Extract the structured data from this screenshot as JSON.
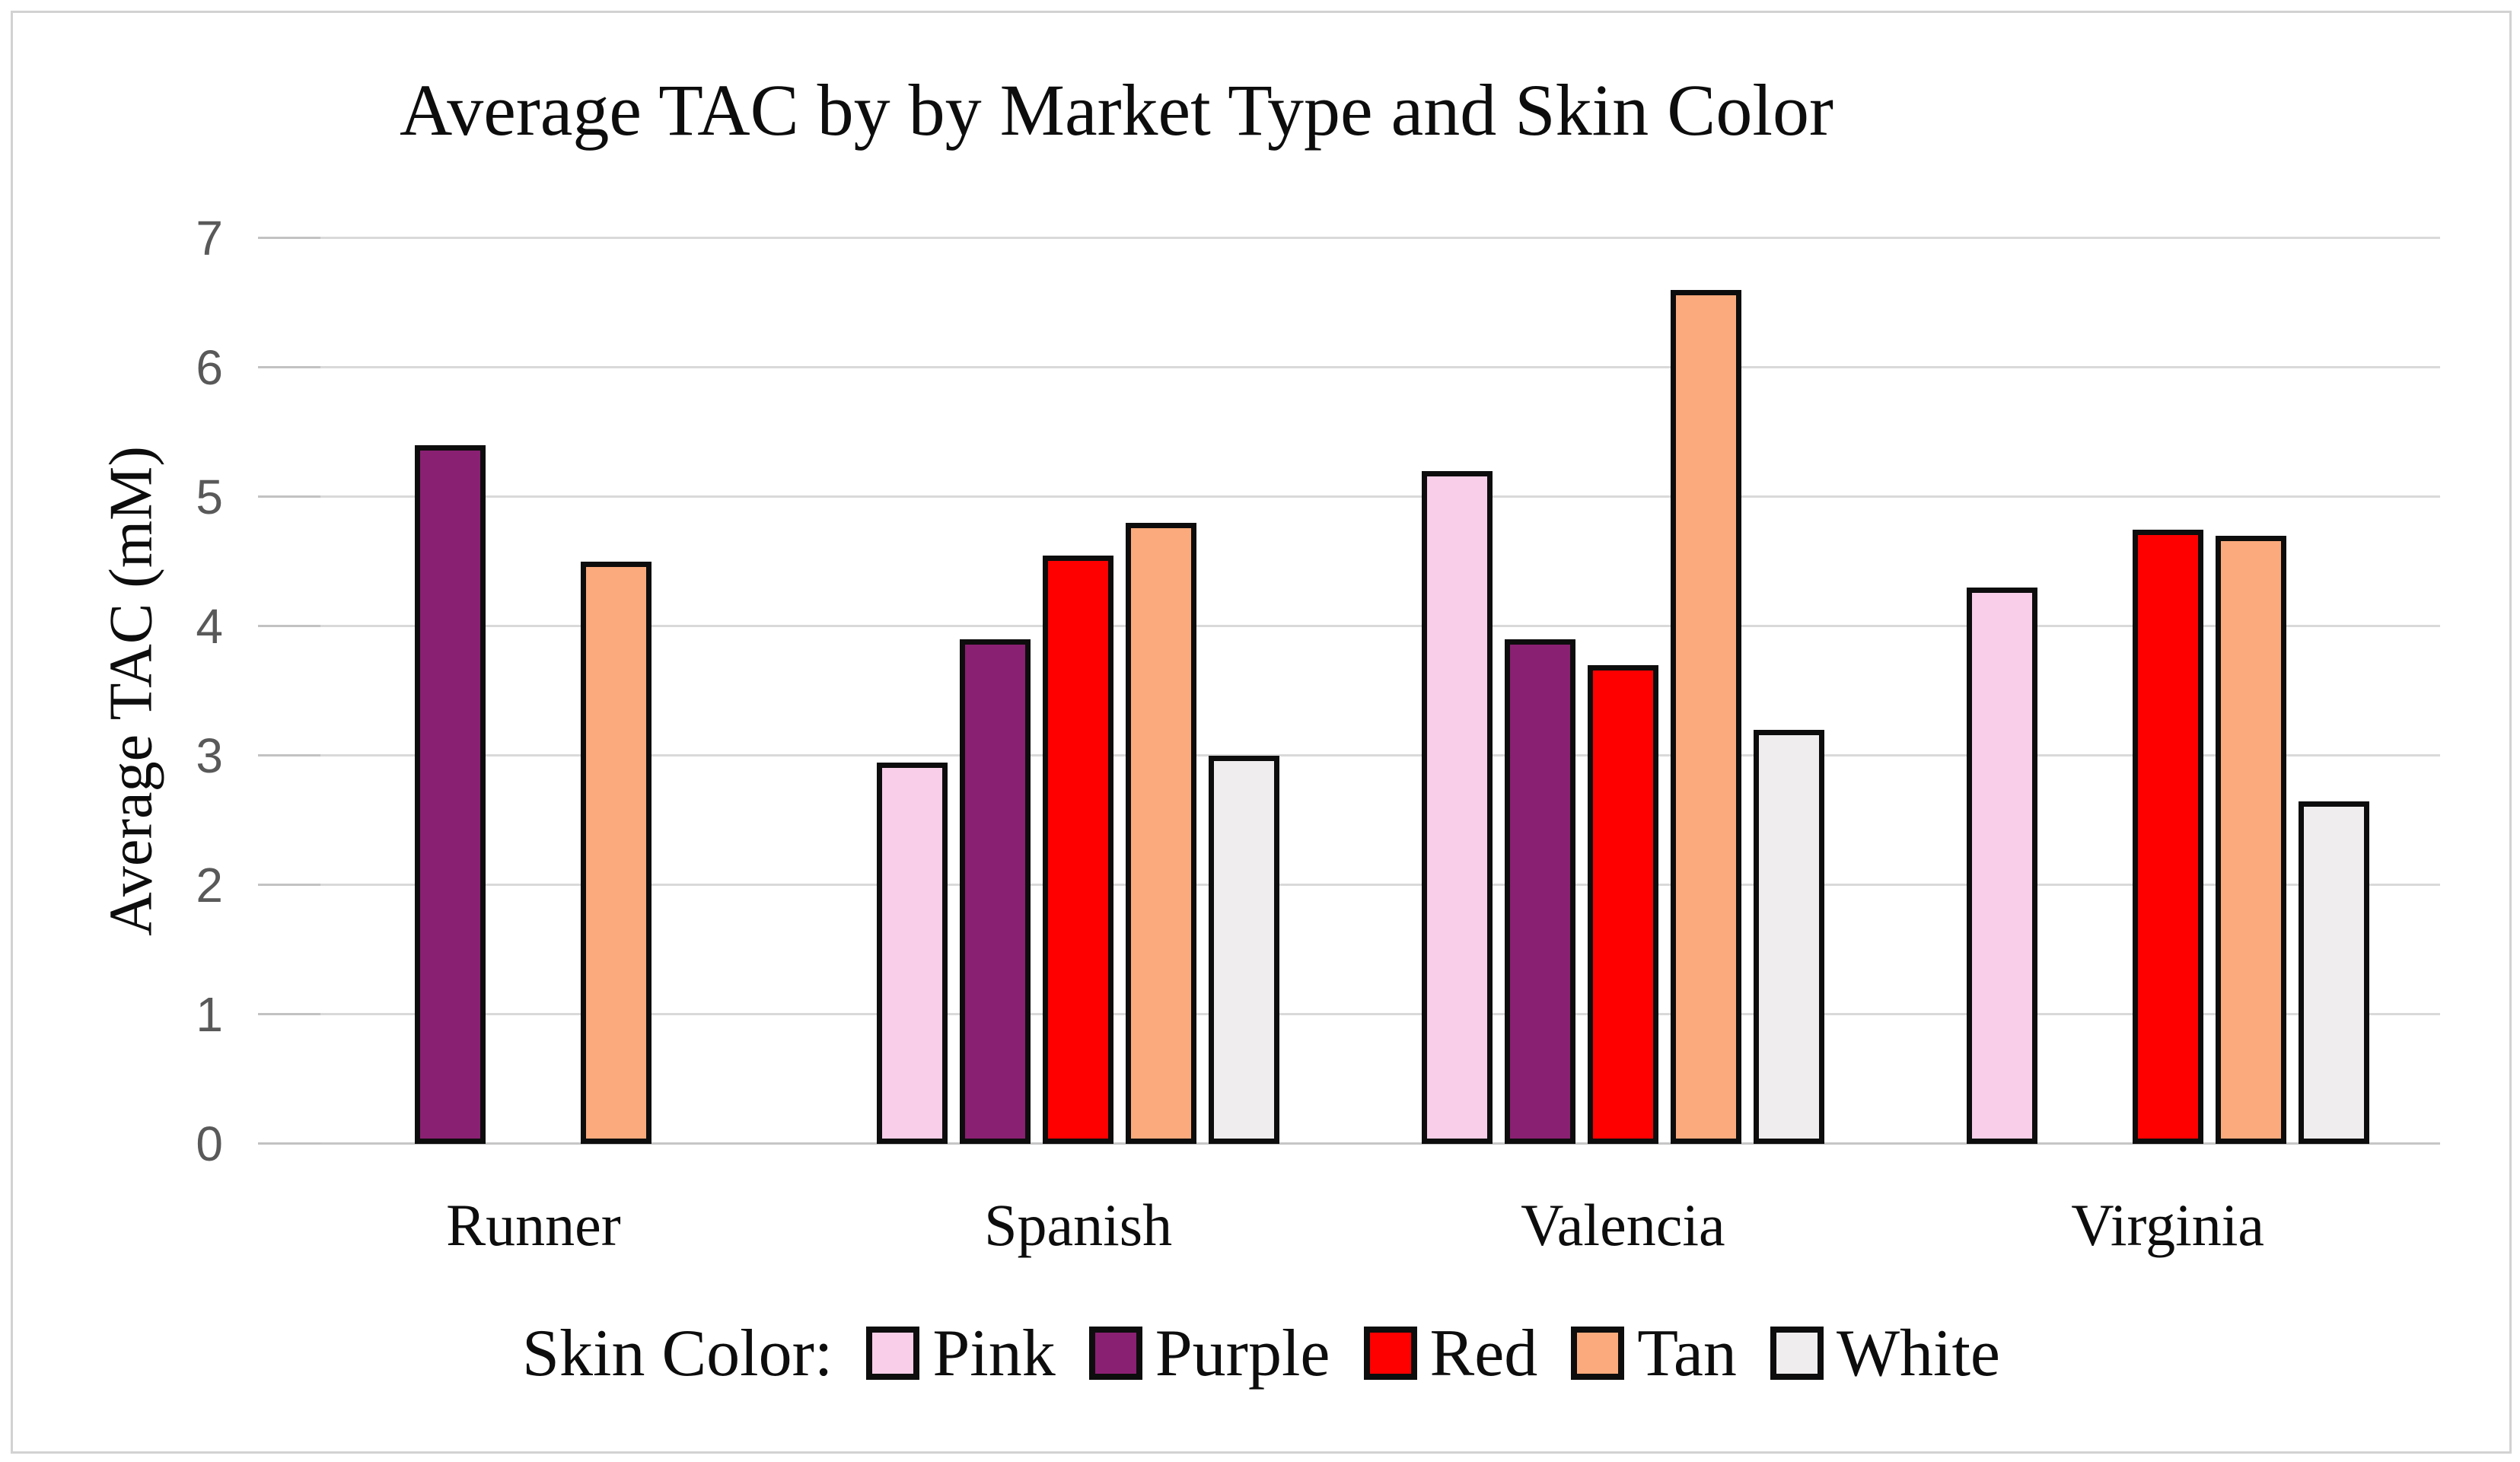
{
  "figure": {
    "background": "#FFFFFF",
    "border_color": "#D2D2D2"
  },
  "chart_data": {
    "type": "bar",
    "title": "Average TAC by by Market Type and Skin Color",
    "xlabel": "",
    "ylabel": "Average TAC (mM)",
    "categories": [
      "Runner",
      "Spanish",
      "Valencia",
      "Virginia"
    ],
    "series": [
      {
        "name": "Pink",
        "color": "#F8CEE8",
        "values": [
          null,
          2.95,
          5.2,
          4.3
        ]
      },
      {
        "name": "Purple",
        "color": "#8A2072",
        "values": [
          5.4,
          3.9,
          3.9,
          null
        ]
      },
      {
        "name": "Red",
        "color": "#FE0000",
        "values": [
          null,
          4.55,
          3.7,
          4.75
        ]
      },
      {
        "name": "Tan",
        "color": "#FAAA7C",
        "values": [
          4.5,
          4.8,
          6.6,
          4.7
        ]
      },
      {
        "name": "White",
        "color": "#EFEDEE",
        "values": [
          null,
          3.0,
          3.2,
          2.65
        ]
      }
    ],
    "ylim": [
      0,
      7
    ],
    "yticks": [
      0,
      1,
      2,
      3,
      4,
      5,
      6,
      7
    ],
    "grid": true,
    "gridline_color": "#D9D9D9",
    "tick_label_color": "#595959",
    "bar_outline_color": "#0D0D0D",
    "legend_position": "bottom",
    "legend_label": "Skin Color:"
  }
}
